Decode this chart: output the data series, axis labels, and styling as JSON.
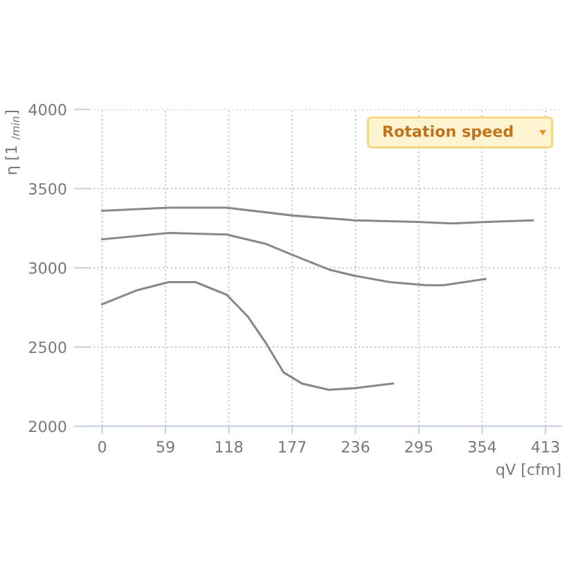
{
  "chart_data": {
    "type": "line",
    "xlabel": "qV [cfm]",
    "ylabel": "η [1 $_{/min}$]",
    "annotations": [
      "Rotation speed"
    ],
    "xlim": [
      -12,
      428
    ],
    "xticks": [
      0,
      59,
      118,
      177,
      236,
      295,
      354,
      413
    ],
    "ylim": [
      2000,
      4000
    ],
    "yticks": [
      2000,
      2500,
      3000,
      3500,
      4000
    ],
    "grid": true,
    "marker": "none",
    "line_style": "solid",
    "legend": false,
    "series": [
      {
        "color": "#888888",
        "x": [
          0,
          62,
          116,
          178,
          235,
          293,
          326,
          359,
          401
        ],
        "values": [
          3360,
          3380,
          3380,
          3330,
          3300,
          3290,
          3280,
          3290,
          3300
        ]
      },
      {
        "color": "#888888",
        "x": [
          0,
          62,
          116,
          153,
          178,
          211,
          235,
          268,
          302,
          318,
          357
        ],
        "values": [
          3180,
          3220,
          3210,
          3150,
          3080,
          2990,
          2950,
          2910,
          2890,
          2890,
          2930
        ]
      },
      {
        "color": "#888888",
        "x": [
          0,
          33,
          62,
          87,
          116,
          136,
          153,
          169,
          186,
          211,
          235,
          271
        ],
        "values": [
          2770,
          2860,
          2910,
          2910,
          2830,
          2690,
          2520,
          2340,
          2270,
          2230,
          2240,
          2270
        ]
      }
    ]
  }
}
